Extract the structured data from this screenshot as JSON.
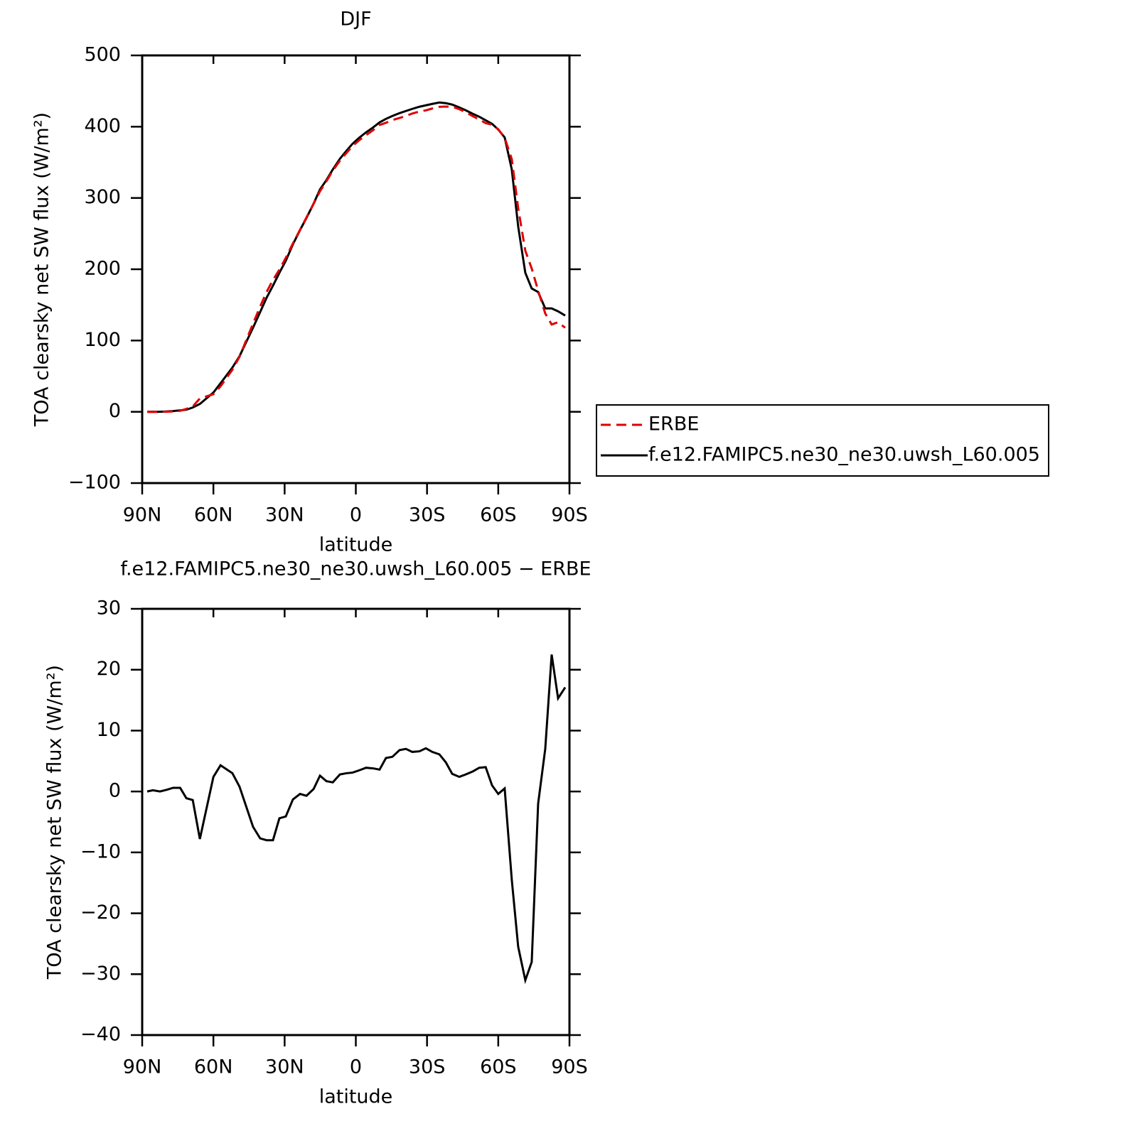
{
  "chart_data": [
    {
      "type": "line",
      "title": "DJF",
      "xlabel": "latitude",
      "ylabel": "TOA clearsky net SW flux (W/m²)",
      "x": [
        87.9,
        85.5,
        82.5,
        79.5,
        77,
        74,
        71.4,
        68.7,
        65.7,
        60,
        57,
        52,
        49,
        43.3,
        40.3,
        37.6,
        34.9,
        32.2,
        29.5,
        26.5,
        23.5,
        20.8,
        17.8,
        15.1,
        12.4,
        9.7,
        6.7,
        4,
        1.4,
        -1.6,
        -4.3,
        -7.3,
        -10,
        -12.7,
        -15.4,
        -18.4,
        -21.1,
        -23.8,
        -26.8,
        -29.5,
        -32.2,
        -35.2,
        -37.9,
        -40.6,
        -43.6,
        -46.3,
        -49.3,
        -52,
        -54.7,
        -57.4,
        -60,
        -62.7,
        -65.7,
        -68.4,
        -71.4,
        -74.1,
        -76.8,
        -79.8,
        -82.5,
        -85.2,
        -88.2
      ],
      "series": [
        {
          "name": "ERBE",
          "color": "#e00000",
          "linestyle": "dashed",
          "values": [
            0,
            -0.2,
            0,
            0.2,
            0.4,
            1.4,
            4.1,
            7.4,
            18.8,
            24.6,
            35.7,
            59,
            77.2,
            123.8,
            147.7,
            168,
            185,
            199.4,
            216.1,
            236.3,
            255.4,
            272.7,
            291.6,
            309.4,
            323.3,
            338.5,
            352.2,
            363,
            372.9,
            381.5,
            388.1,
            395.2,
            402.4,
            405.5,
            409.3,
            412.2,
            415,
            418.5,
            421.4,
            422.9,
            425.5,
            427.9,
            428.2,
            428.1,
            424.6,
            420.2,
            414.7,
            410.1,
            405,
            403,
            396.4,
            384.5,
            354.5,
            285.5,
            226,
            201,
            170,
            138,
            122.5,
            125.7,
            117.9
          ]
        },
        {
          "name": "f.e12.FAMIPC5.ne30_ne30.uwsh_L60.005",
          "color": "#000000",
          "linestyle": "solid",
          "values": [
            0,
            0,
            0,
            0.5,
            1,
            2,
            3,
            6,
            11,
            27,
            40,
            62,
            78,
            118,
            140,
            160,
            177,
            195,
            212,
            235,
            255,
            272,
            292,
            312,
            325,
            340,
            355,
            366,
            376,
            385,
            392,
            399,
            406,
            411,
            415,
            419,
            422,
            425,
            428,
            430,
            432,
            434,
            433,
            431,
            427,
            423,
            418,
            414,
            409,
            404,
            396,
            385,
            340,
            260,
            195,
            173,
            168,
            145,
            145,
            141,
            135
          ]
        }
      ],
      "xlim": [
        90,
        -90
      ],
      "xticks": [
        {
          "value": 90,
          "label": "90N"
        },
        {
          "value": 60,
          "label": "60N"
        },
        {
          "value": 30,
          "label": "30N"
        },
        0,
        {
          "value": -30,
          "label": "30S"
        },
        {
          "value": -60,
          "label": "60S"
        },
        {
          "value": -90,
          "label": "90S"
        }
      ],
      "ylim": [
        -100,
        500
      ],
      "yticks": [
        {
          "value": -100,
          "label": "−100"
        },
        0,
        100,
        200,
        300,
        400,
        500
      ],
      "legend": "right"
    },
    {
      "type": "line",
      "title": "f.e12.FAMIPC5.ne30_ne30.uwsh_L60.005 − ERBE",
      "xlabel": "latitude",
      "ylabel": "TOA clearsky net SW flux (W/m²)",
      "x": [
        87.9,
        85.5,
        82.5,
        79.5,
        77,
        74,
        71.4,
        68.7,
        65.7,
        60,
        57,
        52,
        49,
        43.3,
        40.3,
        37.6,
        34.9,
        32.2,
        29.5,
        26.5,
        23.5,
        20.8,
        17.8,
        15.1,
        12.4,
        9.7,
        6.7,
        4,
        1.4,
        -1.6,
        -4.3,
        -7.3,
        -10,
        -12.7,
        -15.4,
        -18.4,
        -21.1,
        -23.8,
        -26.8,
        -29.5,
        -32.2,
        -35.2,
        -37.9,
        -40.6,
        -43.6,
        -46.3,
        -49.3,
        -52,
        -54.7,
        -57.4,
        -60,
        -62.7,
        -65.7,
        -68.4,
        -71.4,
        -74.1,
        -76.8,
        -79.8,
        -82.5,
        -85.2,
        -88.2
      ],
      "series": [
        {
          "color": "#000000",
          "linestyle": "solid",
          "values": [
            0,
            0.2,
            0,
            0.3,
            0.6,
            0.6,
            -1.1,
            -1.4,
            -7.8,
            2.4,
            4.3,
            3.0,
            0.8,
            -5.8,
            -7.7,
            -8.0,
            -8.0,
            -4.4,
            -4.1,
            -1.3,
            -0.4,
            -0.7,
            0.4,
            2.6,
            1.7,
            1.5,
            2.8,
            3.0,
            3.1,
            3.5,
            3.9,
            3.8,
            3.6,
            5.5,
            5.7,
            6.8,
            7.0,
            6.5,
            6.6,
            7.1,
            6.5,
            6.1,
            4.8,
            2.9,
            2.4,
            2.8,
            3.3,
            3.9,
            4.0,
            1.0,
            -0.4,
            0.5,
            -14.5,
            -25.5,
            -31.0,
            -28.0,
            -2.0,
            7.0,
            22.5,
            15.3,
            17.1
          ]
        }
      ],
      "xlim": [
        90,
        -90
      ],
      "xticks": [
        {
          "value": 90,
          "label": "90N"
        },
        {
          "value": 60,
          "label": "60N"
        },
        {
          "value": 30,
          "label": "30N"
        },
        0,
        {
          "value": -30,
          "label": "30S"
        },
        {
          "value": -60,
          "label": "60S"
        },
        {
          "value": -90,
          "label": "90S"
        }
      ],
      "ylim": [
        -40,
        30
      ],
      "yticks": [
        {
          "value": -40,
          "label": "−40"
        },
        {
          "value": -30,
          "label": "−30"
        },
        {
          "value": -20,
          "label": "−20"
        },
        {
          "value": -10,
          "label": "−10"
        },
        0,
        10,
        20,
        30
      ]
    }
  ]
}
